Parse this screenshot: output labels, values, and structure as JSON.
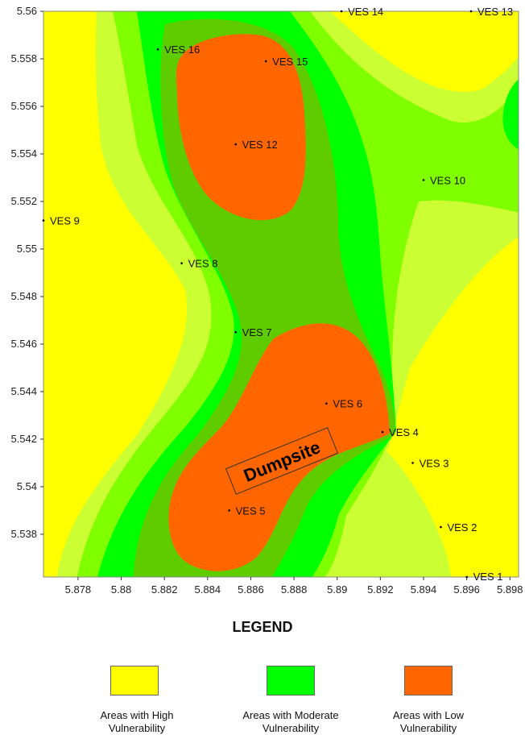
{
  "map": {
    "x_ticks": [
      "5.878",
      "5.88",
      "5.882",
      "5.884",
      "5.886",
      "5.888",
      "5.89",
      "5.892",
      "5.894",
      "5.896",
      "5.898"
    ],
    "y_ticks": [
      "5.56",
      "5.558",
      "5.556",
      "5.554",
      "5.552",
      "5.55",
      "5.548",
      "5.546",
      "5.544",
      "5.542",
      "5.54",
      "5.538"
    ],
    "x_range": [
      5.8764,
      5.8984
    ],
    "y_range": [
      5.5362,
      5.56
    ],
    "stations": [
      {
        "name": "VES 1",
        "lon": 5.896,
        "lat": 5.5362
      },
      {
        "name": "VES 2",
        "lon": 5.8948,
        "lat": 5.5383
      },
      {
        "name": "VES 3",
        "lon": 5.8935,
        "lat": 5.541
      },
      {
        "name": "VES 4",
        "lon": 5.8921,
        "lat": 5.5423
      },
      {
        "name": "VES 5",
        "lon": 5.885,
        "lat": 5.539
      },
      {
        "name": "VES 6",
        "lon": 5.8895,
        "lat": 5.5435
      },
      {
        "name": "VES 7",
        "lon": 5.8853,
        "lat": 5.5465
      },
      {
        "name": "VES 8",
        "lon": 5.8828,
        "lat": 5.5494
      },
      {
        "name": "VES 9",
        "lon": 5.8764,
        "lat": 5.5512
      },
      {
        "name": "VES 10",
        "lon": 5.894,
        "lat": 5.5529
      },
      {
        "name": "VES 12",
        "lon": 5.8853,
        "lat": 5.5544
      },
      {
        "name": "VES 13",
        "lon": 5.8962,
        "lat": 5.56
      },
      {
        "name": "VES 14",
        "lon": 5.8902,
        "lat": 5.56
      },
      {
        "name": "VES 15",
        "lon": 5.8867,
        "lat": 5.5579
      },
      {
        "name": "VES 16",
        "lon": 5.8817,
        "lat": 5.5584
      }
    ],
    "annotation": "Dumpsite",
    "colors": {
      "high": "#ffff00",
      "high_mid": "#ccff33",
      "mid_light": "#80ff00",
      "moderate": "#00ff00",
      "mid_dark": "#5fcc00",
      "low": "#ff6600"
    }
  },
  "legend": {
    "title": "LEGEND",
    "items": [
      {
        "label_line1": "Areas with High",
        "label_line2": "Vulnerability",
        "color": "#ffff00"
      },
      {
        "label_line1": "Areas with Moderate",
        "label_line2": "Vulnerability",
        "color": "#00ff00"
      },
      {
        "label_line1": "Areas with Low",
        "label_line2": "Vulnerability",
        "color": "#ff6600"
      }
    ]
  }
}
